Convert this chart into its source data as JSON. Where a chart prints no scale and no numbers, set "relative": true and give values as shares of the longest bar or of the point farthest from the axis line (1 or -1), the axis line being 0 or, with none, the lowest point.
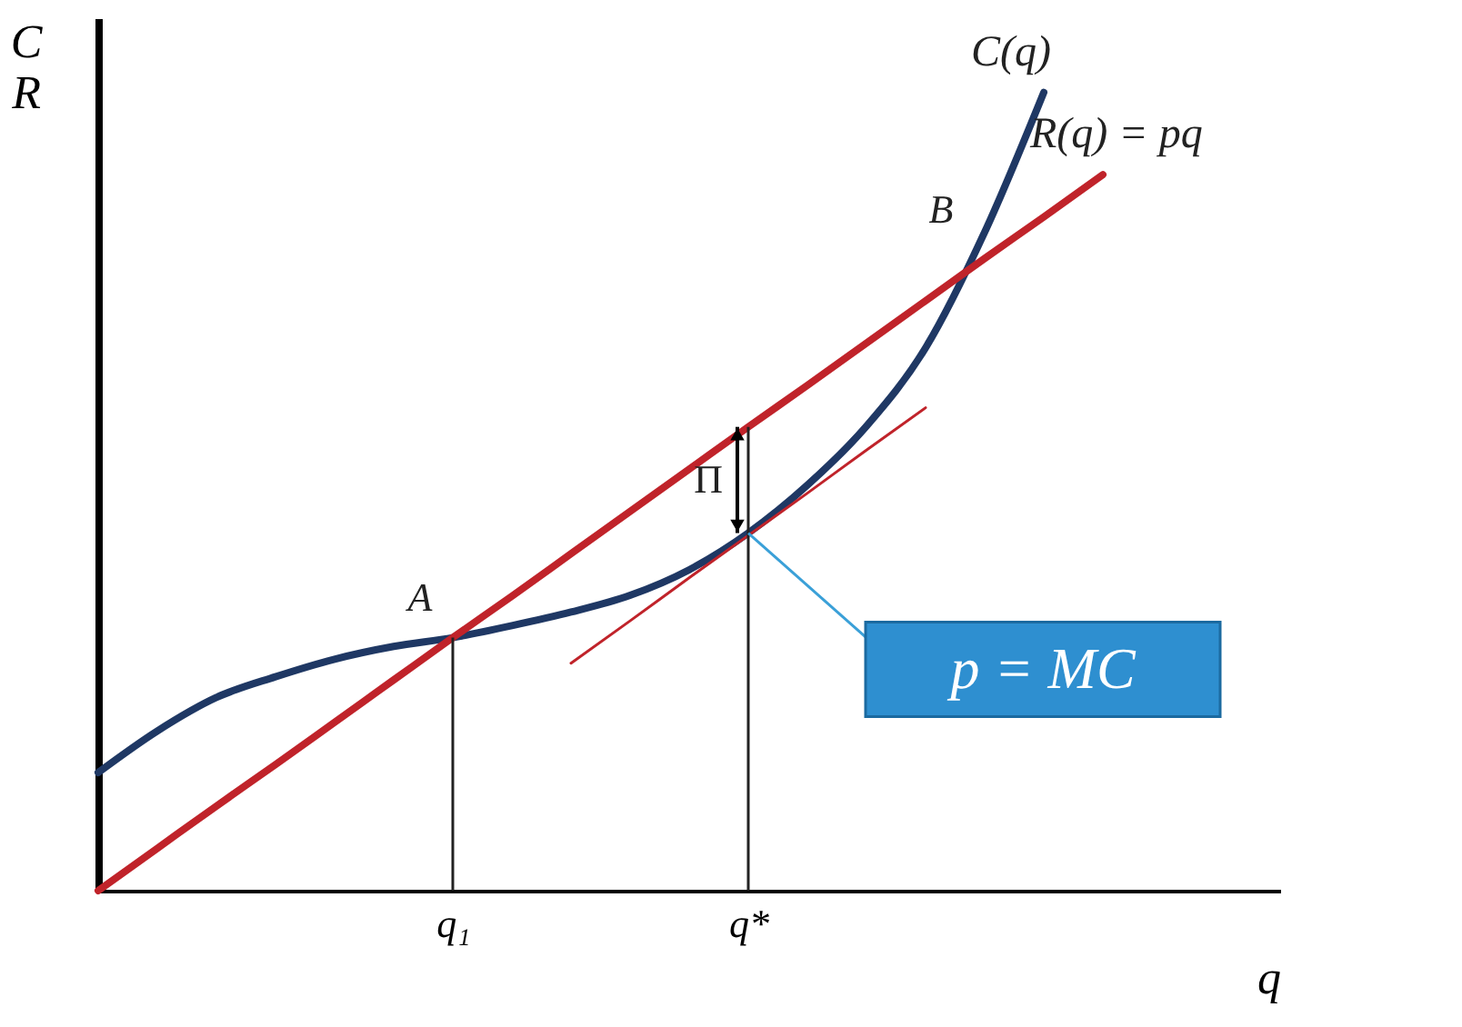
{
  "chart_data": {
    "type": "line",
    "relative": true,
    "xlabel": "q",
    "ylabel": "C\nR",
    "categories": [
      null,
      null,
      null,
      null,
      null,
      null,
      "q₁",
      null,
      null,
      null,
      null,
      "q*",
      null,
      null,
      null,
      null,
      null,
      null,
      null,
      null,
      null
    ],
    "ylim": [
      0,
      1.093
    ],
    "grid": false,
    "series": [
      {
        "name": "C(q)",
        "color": "#1f3864",
        "values": [
          0.148,
          0.2,
          0.242,
          0.268,
          0.29,
          0.306,
          0.317,
          0.332,
          0.349,
          0.37,
          0.402,
          0.448,
          0.508,
          0.582,
          0.68,
          0.825,
          1.0,
          null,
          null,
          null,
          null
        ]
      },
      {
        "name": "R(q) = pq",
        "color": "#c0232a",
        "values": [
          0,
          0.053,
          0.106,
          0.158,
          0.211,
          0.264,
          0.317,
          0.369,
          0.422,
          0.475,
          0.528,
          0.581,
          0.633,
          0.686,
          0.739,
          0.792,
          0.844,
          0.897,
          null,
          null,
          null
        ]
      },
      {
        "color": "#c0232a",
        "values": [
          null,
          null,
          null,
          null,
          null,
          null,
          null,
          null,
          0.285,
          0.338,
          0.392,
          0.445,
          0.498,
          0.552,
          0.605,
          null,
          null,
          null,
          null,
          null,
          null
        ]
      }
    ],
    "ref_lines": [
      {
        "axis": "x",
        "value": "q₁",
        "color": "#222222"
      },
      {
        "axis": "x",
        "value": "q*",
        "color": "#222222"
      }
    ],
    "annotations": [
      "A",
      "B",
      "Π",
      "p = MC"
    ]
  }
}
